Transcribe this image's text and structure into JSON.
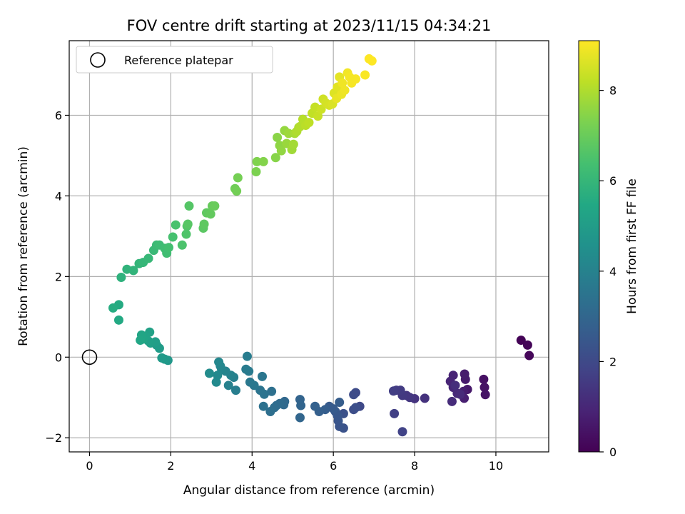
{
  "chart_data": {
    "type": "scatter",
    "title": "FOV centre drift starting at 2023/11/15 04:34:21",
    "xlabel": "Angular distance from reference (arcmin)",
    "ylabel": "Rotation from reference (arcmin)",
    "xlim": [
      -0.5,
      11.3
    ],
    "ylim": [
      -2.35,
      7.85
    ],
    "x_ticks": [
      0,
      2,
      4,
      6,
      8,
      10
    ],
    "y_ticks": [
      -2,
      0,
      2,
      4,
      6
    ],
    "grid": true,
    "legend": {
      "location": "upper-left",
      "entries": [
        "Reference platepar"
      ]
    },
    "colorbar": {
      "label": "Hours from first FF file",
      "range": [
        0,
        9.1
      ],
      "ticks": [
        0,
        2,
        4,
        6,
        8
      ],
      "colormap": "viridis"
    },
    "reference_point": {
      "x": 0,
      "y": 0
    },
    "points": [
      [
        10.62,
        0.42,
        0.05
      ],
      [
        10.78,
        0.3,
        0.1
      ],
      [
        10.82,
        0.04,
        0.15
      ],
      [
        9.7,
        -0.55,
        0.4
      ],
      [
        9.72,
        -0.75,
        0.45
      ],
      [
        9.74,
        -0.93,
        0.5
      ],
      [
        9.3,
        -0.8,
        0.6
      ],
      [
        9.25,
        -0.55,
        0.65
      ],
      [
        9.23,
        -0.42,
        0.7
      ],
      [
        9.2,
        -0.85,
        0.75
      ],
      [
        9.22,
        -1.02,
        0.8
      ],
      [
        8.95,
        -0.45,
        0.9
      ],
      [
        8.88,
        -0.6,
        0.95
      ],
      [
        8.95,
        -0.75,
        1.0
      ],
      [
        9.05,
        -0.9,
        1.05
      ],
      [
        9.12,
        -0.92,
        1.1
      ],
      [
        8.92,
        -1.1,
        1.15
      ],
      [
        9.0,
        -0.7,
        1.2
      ],
      [
        8.25,
        -1.02,
        1.3
      ],
      [
        8.0,
        -1.03,
        1.35
      ],
      [
        7.8,
        -0.95,
        1.4
      ],
      [
        7.88,
        -1.0,
        1.45
      ],
      [
        7.7,
        -0.95,
        1.5
      ],
      [
        7.65,
        -0.82,
        1.55
      ],
      [
        7.55,
        -0.82,
        1.6
      ],
      [
        7.48,
        -0.84,
        1.65
      ],
      [
        7.5,
        -1.4,
        1.7
      ],
      [
        7.7,
        -1.85,
        1.8
      ],
      [
        6.65,
        -1.22,
        2.0
      ],
      [
        6.55,
        -0.88,
        2.05
      ],
      [
        6.5,
        -0.93,
        2.1
      ],
      [
        6.5,
        -1.3,
        2.15
      ],
      [
        6.55,
        -1.25,
        2.2
      ],
      [
        6.25,
        -1.4,
        2.25
      ],
      [
        6.25,
        -1.76,
        2.3
      ],
      [
        6.15,
        -1.72,
        2.35
      ],
      [
        6.12,
        -1.58,
        2.4
      ],
      [
        6.1,
        -1.45,
        2.45
      ],
      [
        6.05,
        -1.35,
        2.5
      ],
      [
        5.9,
        -1.22,
        2.55
      ],
      [
        6.0,
        -1.28,
        2.6
      ],
      [
        6.15,
        -1.12,
        2.65
      ],
      [
        5.8,
        -1.3,
        2.7
      ],
      [
        5.65,
        -1.35,
        2.75
      ],
      [
        5.55,
        -1.22,
        2.8
      ],
      [
        5.18,
        -1.05,
        2.9
      ],
      [
        5.2,
        -1.2,
        2.95
      ],
      [
        5.18,
        -1.5,
        3.0
      ],
      [
        4.8,
        -1.1,
        3.05
      ],
      [
        4.78,
        -1.18,
        3.1
      ],
      [
        4.68,
        -1.15,
        3.15
      ],
      [
        4.6,
        -1.2,
        3.2
      ],
      [
        4.55,
        -1.25,
        3.25
      ],
      [
        4.45,
        -1.35,
        3.3
      ],
      [
        4.48,
        -0.85,
        3.35
      ],
      [
        4.28,
        -1.22,
        3.4
      ],
      [
        4.3,
        -0.92,
        3.45
      ],
      [
        4.2,
        -0.82,
        3.5
      ],
      [
        4.25,
        -0.48,
        3.55
      ],
      [
        4.05,
        -0.7,
        3.6
      ],
      [
        3.95,
        -0.62,
        3.65
      ],
      [
        3.92,
        -0.35,
        3.7
      ],
      [
        3.85,
        -0.3,
        3.75
      ],
      [
        3.88,
        0.02,
        3.8
      ],
      [
        3.6,
        -0.82,
        3.85
      ],
      [
        3.55,
        -0.5,
        3.9
      ],
      [
        3.42,
        -0.7,
        3.95
      ],
      [
        3.48,
        -0.45,
        4.0
      ],
      [
        3.35,
        -0.35,
        4.05
      ],
      [
        3.25,
        -0.3,
        4.1
      ],
      [
        3.22,
        -0.22,
        4.15
      ],
      [
        3.18,
        -0.12,
        4.2
      ],
      [
        3.15,
        -0.45,
        4.25
      ],
      [
        3.12,
        -0.62,
        4.3
      ],
      [
        2.95,
        -0.4,
        4.35
      ],
      [
        1.93,
        -0.08,
        4.8
      ],
      [
        1.85,
        -0.05,
        4.85
      ],
      [
        1.78,
        -0.02,
        4.9
      ],
      [
        1.72,
        0.22,
        4.95
      ],
      [
        1.65,
        0.3,
        5.0
      ],
      [
        1.62,
        0.38,
        5.05
      ],
      [
        1.5,
        0.35,
        5.1
      ],
      [
        1.45,
        0.4,
        5.15
      ],
      [
        1.48,
        0.62,
        5.2
      ],
      [
        1.38,
        0.52,
        5.25
      ],
      [
        1.32,
        0.45,
        5.3
      ],
      [
        1.28,
        0.55,
        5.35
      ],
      [
        1.25,
        0.42,
        5.4
      ],
      [
        0.72,
        0.92,
        5.5
      ],
      [
        0.72,
        1.3,
        5.55
      ],
      [
        0.58,
        1.22,
        5.6
      ],
      [
        0.78,
        1.98,
        5.8
      ],
      [
        0.92,
        2.18,
        5.85
      ],
      [
        1.08,
        2.15,
        5.9
      ],
      [
        1.22,
        2.32,
        5.95
      ],
      [
        1.32,
        2.35,
        6.0
      ],
      [
        1.45,
        2.45,
        6.05
      ],
      [
        1.58,
        2.65,
        6.1
      ],
      [
        1.65,
        2.78,
        6.15
      ],
      [
        1.72,
        2.78,
        6.2
      ],
      [
        1.85,
        2.7,
        6.25
      ],
      [
        1.9,
        2.58,
        6.3
      ],
      [
        1.95,
        2.72,
        6.35
      ],
      [
        2.05,
        2.98,
        6.4
      ],
      [
        2.12,
        3.28,
        6.45
      ],
      [
        2.28,
        2.78,
        6.5
      ],
      [
        2.38,
        3.05,
        6.55
      ],
      [
        2.4,
        3.25,
        6.6
      ],
      [
        2.45,
        3.75,
        6.65
      ],
      [
        2.42,
        3.3,
        6.7
      ],
      [
        2.8,
        3.2,
        6.75
      ],
      [
        2.82,
        3.3,
        6.8
      ],
      [
        2.88,
        3.58,
        6.85
      ],
      [
        2.98,
        3.55,
        6.9
      ],
      [
        3.02,
        3.75,
        6.95
      ],
      [
        3.08,
        3.75,
        7.0
      ],
      [
        3.58,
        4.18,
        7.1
      ],
      [
        3.62,
        4.12,
        7.15
      ],
      [
        3.65,
        4.45,
        7.2
      ],
      [
        4.1,
        4.6,
        7.3
      ],
      [
        4.12,
        4.85,
        7.35
      ],
      [
        4.28,
        4.85,
        7.4
      ],
      [
        4.58,
        4.95,
        7.45
      ],
      [
        4.62,
        5.45,
        7.5
      ],
      [
        4.68,
        5.25,
        7.55
      ],
      [
        4.72,
        5.12,
        7.6
      ],
      [
        4.8,
        5.62,
        7.65
      ],
      [
        4.85,
        5.3,
        7.7
      ],
      [
        4.9,
        5.55,
        7.75
      ],
      [
        4.98,
        5.15,
        7.8
      ],
      [
        5.02,
        5.28,
        7.85
      ],
      [
        5.05,
        5.55,
        7.9
      ],
      [
        5.15,
        5.7,
        7.95
      ],
      [
        5.1,
        5.6,
        8.0
      ],
      [
        5.18,
        5.72,
        8.05
      ],
      [
        5.25,
        5.9,
        8.1
      ],
      [
        5.32,
        5.75,
        8.15
      ],
      [
        5.4,
        5.82,
        8.2
      ],
      [
        5.48,
        6.05,
        8.25
      ],
      [
        5.55,
        6.2,
        8.3
      ],
      [
        5.62,
        5.98,
        8.35
      ],
      [
        5.7,
        6.15,
        8.4
      ],
      [
        5.75,
        6.4,
        8.45
      ],
      [
        5.82,
        6.3,
        8.5
      ],
      [
        5.9,
        6.25,
        8.55
      ],
      [
        5.98,
        6.28,
        8.6
      ],
      [
        6.02,
        6.55,
        8.65
      ],
      [
        6.1,
        6.7,
        8.7
      ],
      [
        6.15,
        6.95,
        8.75
      ],
      [
        6.08,
        6.42,
        8.8
      ],
      [
        6.2,
        6.52,
        8.85
      ],
      [
        6.28,
        6.62,
        8.9
      ],
      [
        6.35,
        7.05,
        8.95
      ],
      [
        6.45,
        6.8,
        9.0
      ],
      [
        6.55,
        6.9,
        9.02
      ],
      [
        6.78,
        7.0,
        9.05
      ],
      [
        6.88,
        7.4,
        9.1
      ],
      [
        6.95,
        7.35,
        9.1
      ],
      [
        6.22,
        6.8,
        8.92
      ],
      [
        6.4,
        6.95,
        8.98
      ]
    ]
  }
}
